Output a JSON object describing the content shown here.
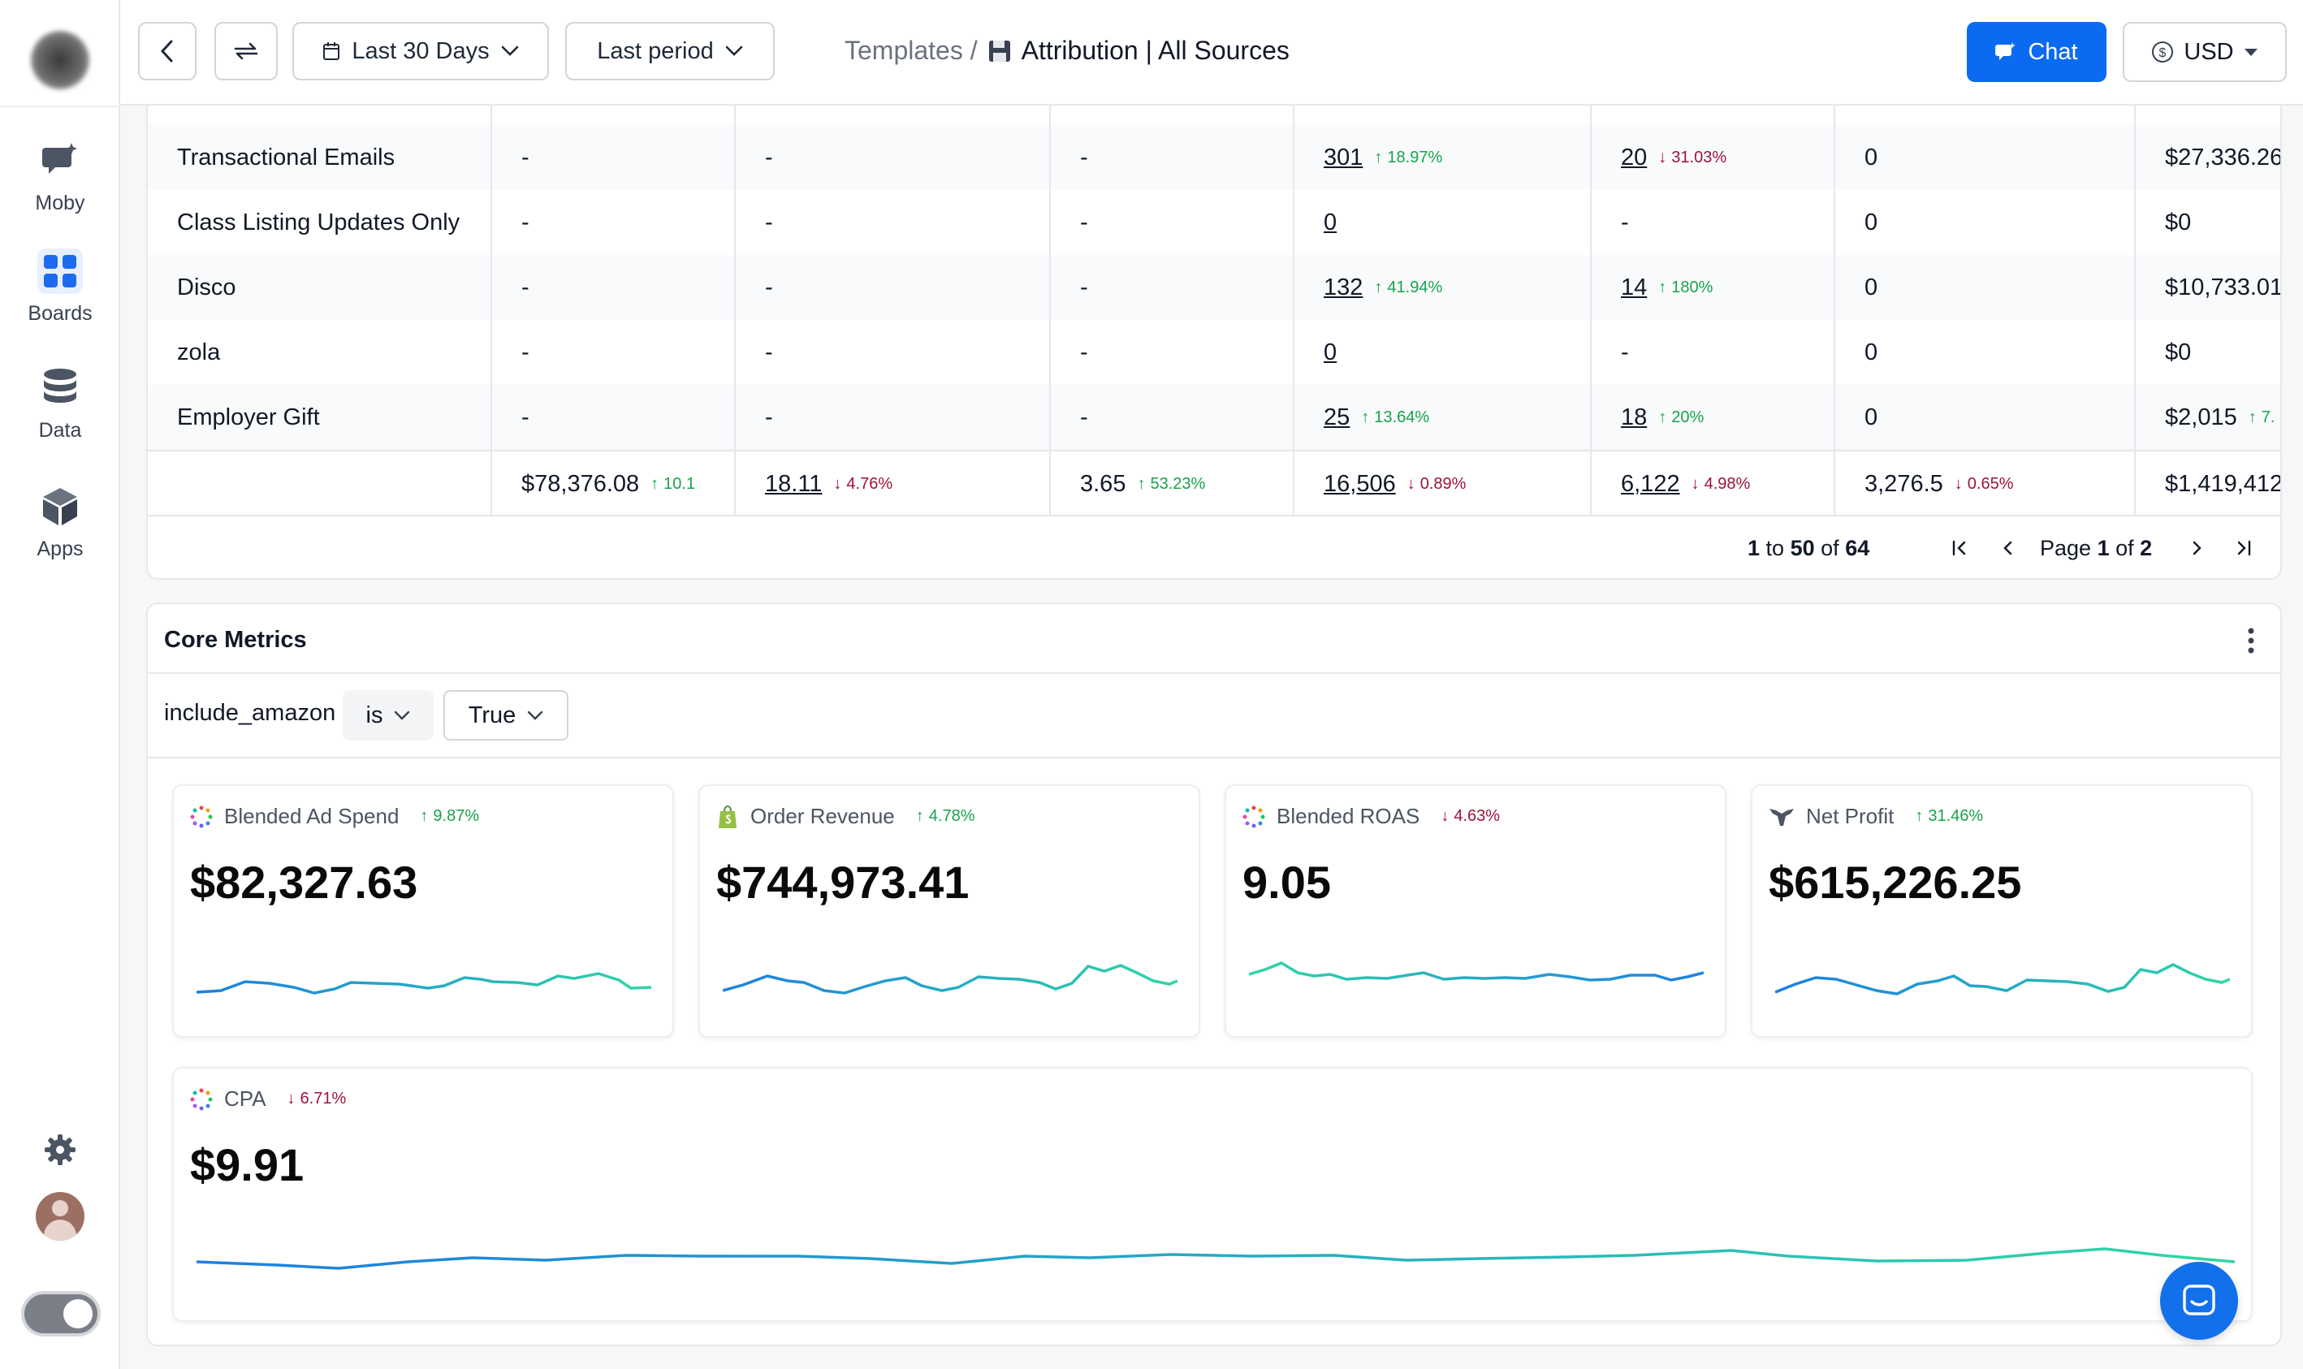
{
  "sidebar": {
    "items": [
      {
        "label": "Moby",
        "icon": "chat-bubble-icon"
      },
      {
        "label": "Boards",
        "icon": "grid-icon"
      },
      {
        "label": "Data",
        "icon": "database-icon"
      },
      {
        "label": "Apps",
        "icon": "cube-icon"
      }
    ]
  },
  "topbar": {
    "date_range": "Last 30 Days",
    "compare": "Last period",
    "breadcrumb_parent": "Templates /",
    "breadcrumb_current": "Attribution | All Sources",
    "chat_label": "Chat",
    "currency": "USD"
  },
  "table": {
    "rows": [
      {
        "name": "Transactional Emails",
        "c1": "-",
        "c2": "-",
        "c3": "-",
        "c4": "301",
        "c4d": "18.97%",
        "c5": "20",
        "c5d": "31.03%",
        "c6": "0",
        "c7": "$27,336.26"
      },
      {
        "name": "Class Listing Updates Only",
        "c1": "-",
        "c2": "-",
        "c3": "-",
        "c4": "0",
        "c5": "-",
        "c6": "0",
        "c7": "$0"
      },
      {
        "name": "Disco",
        "c1": "-",
        "c2": "-",
        "c3": "-",
        "c4": "132",
        "c4d": "41.94%",
        "c5": "14",
        "c5d": "180%",
        "c6": "0",
        "c7": "$10,733.01"
      },
      {
        "name": "zola",
        "c1": "-",
        "c2": "-",
        "c3": "-",
        "c4": "0",
        "c5": "-",
        "c6": "0",
        "c7": "$0"
      },
      {
        "name": "Employer Gift",
        "c1": "-",
        "c2": "-",
        "c3": "-",
        "c4": "25",
        "c4d": "13.64%",
        "c5": "18",
        "c5d": "20%",
        "c6": "0",
        "c7": "$2,015",
        "c7d": "7."
      }
    ],
    "totals": {
      "c1": "$78,376.08",
      "c1d": "10.1",
      "c2": "18.11",
      "c2d": "4.76%",
      "c3": "3.65",
      "c3d": "53.23%",
      "c4": "16,506",
      "c4d": "0.89%",
      "c5": "6,122",
      "c5d": "4.98%",
      "c6": "3,276.5",
      "c6d": "0.65%",
      "c7": "$1,419,412"
    },
    "pagination": {
      "from": "1",
      "to_word": "to",
      "to": "50",
      "of_word": "of",
      "total": "64",
      "page_word": "Page",
      "page": "1",
      "pages": "2"
    }
  },
  "core_metrics": {
    "title": "Core Metrics",
    "filter": {
      "field": "include_amazon",
      "operator": "is",
      "value": "True"
    },
    "cards": [
      {
        "label": "Blended Ad Spend",
        "delta": "9.87%",
        "direction": "up",
        "value": "$82,327.63",
        "icon": "dots-ring-icon"
      },
      {
        "label": "Order Revenue",
        "delta": "4.78%",
        "direction": "up",
        "value": "$744,973.41",
        "icon": "shopify-bag-icon"
      },
      {
        "label": "Blended ROAS",
        "delta": "4.63%",
        "direction": "down",
        "value": "9.05",
        "icon": "dots-ring-icon"
      },
      {
        "label": "Net Profit",
        "delta": "31.46%",
        "direction": "up",
        "value": "$615,226.25",
        "icon": "triple-whale-icon"
      },
      {
        "label": "CPA",
        "delta": "6.71%",
        "direction": "down",
        "value": "$9.91",
        "icon": "dots-ring-icon"
      }
    ]
  },
  "colors": {
    "accent": "#0b6bf0",
    "up": "#16a34a",
    "down": "#9f1239",
    "spark_start": "#1d7fe0",
    "spark_end": "#2fd6a6"
  }
}
